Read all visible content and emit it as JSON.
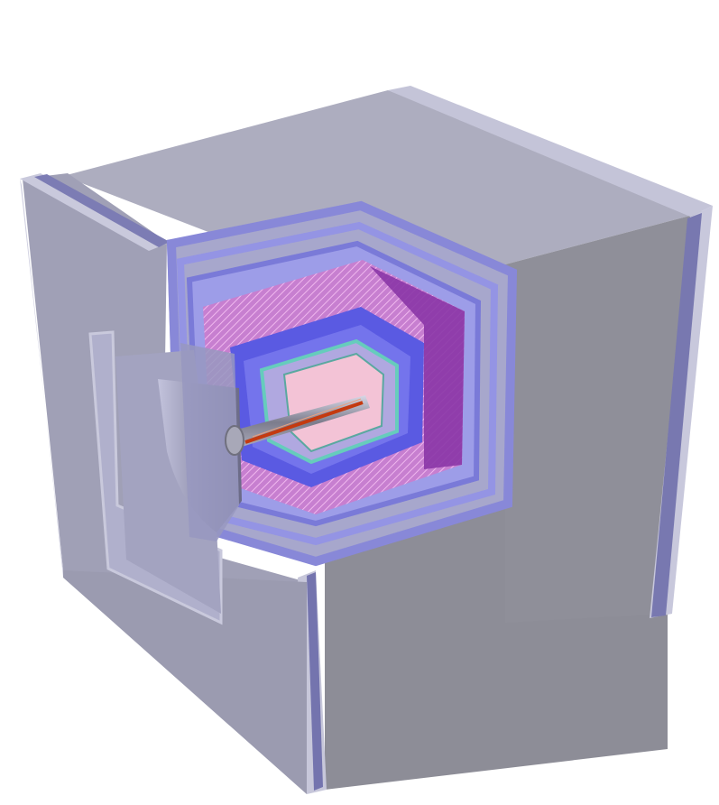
{
  "scene": {
    "colors": {
      "background": "#ffffff",
      "outer_face_top": "#a9a9bd",
      "outer_face_side": "#8e8e98",
      "outer_face_front": "#9c9cae",
      "panel_edge": "#c9c9dc",
      "panel_stripe": "#7c7cb4",
      "muon_layers": "#8f8fe6",
      "calorimeter": "#8c3aa8",
      "calorimeter_hatch": "#d68fd6",
      "solenoid": "#5454e0",
      "tracker_inner": "#f4c6d6",
      "tracker_frame": "#6ad0c0",
      "beam_pipe": "#8a8a96",
      "beam_core": "#c43a10",
      "endcap_cone": "#7a7a9a"
    }
  }
}
